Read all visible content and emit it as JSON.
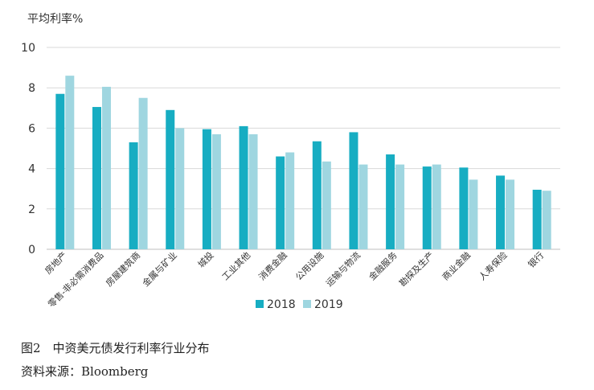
{
  "chart_data": {
    "type": "bar",
    "ylabel": "平均利率%",
    "ylim": [
      0,
      10
    ],
    "yticks": [
      0,
      2,
      4,
      6,
      8,
      10
    ],
    "grid": true,
    "legend_position": "bottom",
    "categories": [
      "房地产",
      "零售-非必需消费品",
      "房屋建筑商",
      "金属与矿业",
      "城投",
      "工业其他",
      "消费金融",
      "公用设施",
      "运输与物流",
      "金融服务",
      "勘探及生产",
      "商业金融",
      "人寿保险",
      "银行"
    ],
    "series": [
      {
        "name": "2018",
        "color": "#17adc2",
        "values": [
          7.7,
          7.05,
          5.3,
          6.9,
          5.95,
          6.1,
          4.6,
          5.35,
          5.8,
          4.7,
          4.1,
          4.05,
          3.65,
          2.95
        ]
      },
      {
        "name": "2019",
        "color": "#9fd6e0",
        "values": [
          8.6,
          8.05,
          7.5,
          6.0,
          5.7,
          5.7,
          4.8,
          4.35,
          4.2,
          4.2,
          4.2,
          3.45,
          3.45,
          2.9
        ]
      }
    ]
  },
  "caption": {
    "title": "图2　中资美元债发行利率行业分布",
    "source": "资料来源：Bloomberg"
  }
}
